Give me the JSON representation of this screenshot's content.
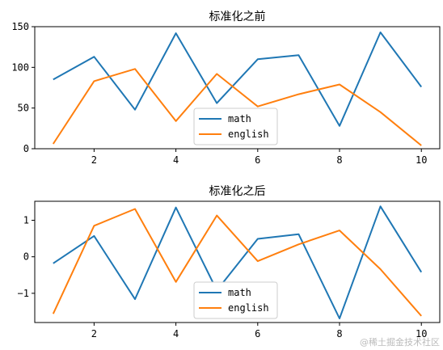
{
  "chart_data": [
    {
      "type": "line",
      "title": "标准化之前",
      "x": [
        1,
        2,
        3,
        4,
        5,
        6,
        7,
        8,
        9,
        10
      ],
      "xticks": [
        2,
        4,
        6,
        8,
        10
      ],
      "xlim": [
        0.55,
        10.45
      ],
      "ylim": [
        0,
        150
      ],
      "yticks": [
        0,
        50,
        100,
        150
      ],
      "series": [
        {
          "name": "math",
          "color": "#1f77b4",
          "values": [
            85,
            113,
            48,
            142,
            56,
            110,
            115,
            28,
            143,
            76
          ]
        },
        {
          "name": "english",
          "color": "#ff7f0e",
          "values": [
            6,
            83,
            98,
            34,
            92,
            52,
            67,
            79,
            45,
            4
          ]
        }
      ],
      "legend": "lower-center"
    },
    {
      "type": "line",
      "title": "标准化之后",
      "x": [
        1,
        2,
        3,
        4,
        5,
        6,
        7,
        8,
        9,
        10
      ],
      "xticks": [
        2,
        4,
        6,
        8,
        10
      ],
      "xlim": [
        0.55,
        10.45
      ],
      "ylim": [
        -1.8,
        1.52
      ],
      "yticks": [
        -1,
        0,
        1
      ],
      "series": [
        {
          "name": "math",
          "color": "#1f77b4",
          "values": [
            -0.18,
            0.57,
            -1.16,
            1.35,
            -0.92,
            0.49,
            0.62,
            -1.69,
            1.38,
            -0.42
          ]
        },
        {
          "name": "english",
          "color": "#ff7f0e",
          "values": [
            -1.56,
            0.85,
            1.31,
            -0.69,
            1.13,
            -0.12,
            0.34,
            0.72,
            -0.34,
            -1.62
          ]
        }
      ],
      "legend": "lower-center"
    }
  ],
  "watermark": "@稀土掘金技术社区"
}
